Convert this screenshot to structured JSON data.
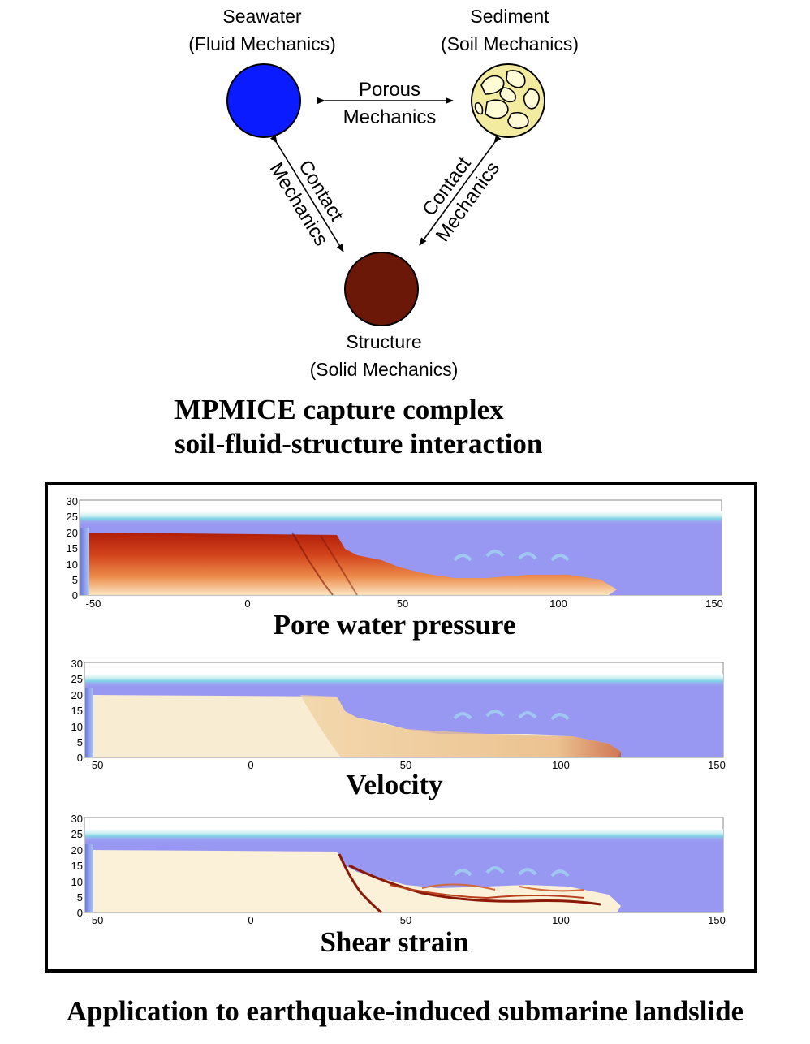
{
  "diagram": {
    "seawater": {
      "title": "Seawater",
      "subtitle": "(Fluid Mechanics)",
      "color": "#0a1bff"
    },
    "sediment": {
      "title": "Sediment",
      "subtitle": "(Soil Mechanics)",
      "color": "#f3eca0"
    },
    "structure": {
      "title": "Structure",
      "subtitle": "(Solid Mechanics)",
      "color": "#6b1808"
    },
    "porous": {
      "line1": "Porous",
      "line2": "Mechanics"
    },
    "contact_left": {
      "line1": "Contact",
      "line2": "Mechanics"
    },
    "contact_right": {
      "line1": "Contact",
      "line2": "Mechanics"
    },
    "headline": {
      "line1": "MPMICE capture complex",
      "line2": "soil-fluid-structure interaction"
    }
  },
  "plots": [
    {
      "title": "Pore water pressure",
      "x_ticks": [
        "-50",
        "0",
        "50",
        "100",
        "150"
      ],
      "y_ticks": [
        "0",
        "5",
        "10",
        "15",
        "20",
        "25",
        "30"
      ]
    },
    {
      "title": "Velocity",
      "x_ticks": [
        "-50",
        "0",
        "50",
        "100",
        "150"
      ],
      "y_ticks": [
        "0",
        "5",
        "10",
        "15",
        "20",
        "25",
        "30"
      ]
    },
    {
      "title": "Shear strain",
      "x_ticks": [
        "-50",
        "0",
        "50",
        "100",
        "150"
      ],
      "y_ticks": [
        "0",
        "5",
        "10",
        "15",
        "20",
        "25",
        "30"
      ]
    }
  ],
  "caption": "Application to earthquake-induced submarine landslide"
}
